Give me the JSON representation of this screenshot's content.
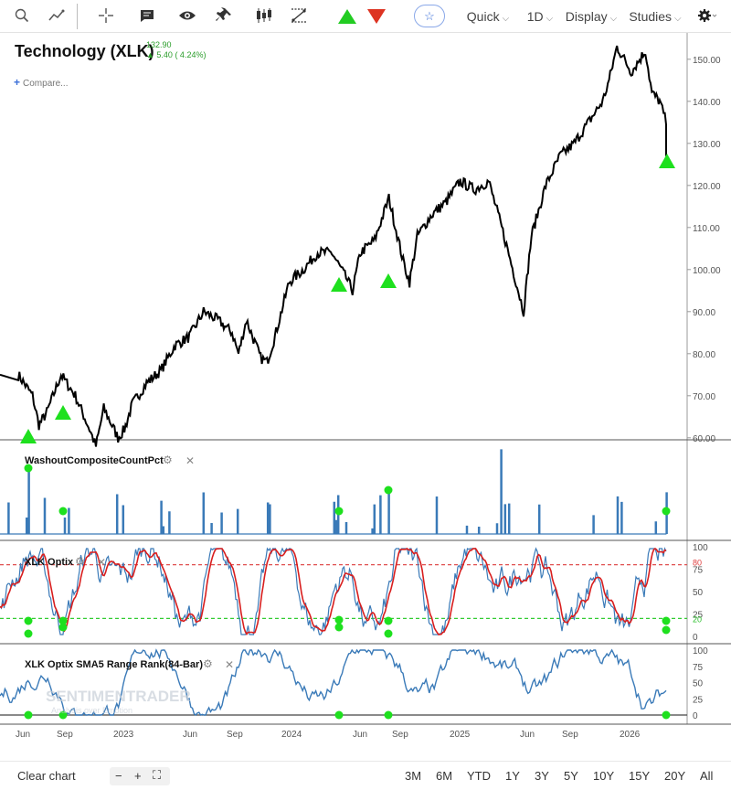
{
  "toolbar": {
    "tools": [
      {
        "name": "search-icon"
      },
      {
        "name": "trend-draw-icon"
      },
      {
        "name": "crosshair-icon"
      },
      {
        "name": "chat-icon"
      },
      {
        "name": "eye-icon"
      },
      {
        "name": "pin-icon"
      },
      {
        "name": "candles-icon"
      },
      {
        "name": "compare-lines-icon"
      },
      {
        "name": "up-triangle-icon"
      },
      {
        "name": "down-triangle-icon"
      }
    ],
    "fav_icon": "☆",
    "quick_label": "Quick",
    "period_label": "1D",
    "display_label": "Display",
    "studies_label": "Studies",
    "settings_icon": "gear-icon",
    "colors": {
      "up": "#22cc22",
      "down": "#dd3322"
    }
  },
  "legend": {
    "symbol_name": "Technology (XLK)",
    "price": "132.90",
    "change": "5.40 ( 4.24%)",
    "compare_label": "Compare..."
  },
  "panels": {
    "washout": {
      "label": "WashoutCompositeCountPct"
    },
    "optix": {
      "label": "XLK Optix",
      "level_labels": [
        "100",
        "80",
        "75",
        "50",
        "25",
        "20",
        "0"
      ]
    },
    "range_rank": {
      "label": "XLK Optix SMA5 Range Rank(84-Bar)",
      "level_labels": [
        "100",
        "75",
        "50",
        "25",
        "0"
      ]
    }
  },
  "watermark": {
    "line1": "SENTIMENTRADER",
    "line2": "Analysis over Emotion"
  },
  "footer": {
    "clear_label": "Clear chart",
    "zoom_out": "−",
    "zoom_in": "+",
    "fit_icon": "fit-icon",
    "ranges": [
      "3M",
      "6M",
      "YTD",
      "1Y",
      "3Y",
      "5Y",
      "10Y",
      "15Y",
      "20Y",
      "All"
    ]
  },
  "chart_data": {
    "type": "line",
    "x_tick_labels": [
      "Jun",
      "Sep",
      "2023",
      "Jun",
      "Sep",
      "2024",
      "Jun",
      "Sep",
      "2025",
      "Jun",
      "Sep",
      "2026"
    ],
    "price_axis": {
      "ticks": [
        "150.00",
        "140.00",
        "130.00",
        "120.00",
        "110.00",
        "100.00",
        "90.00",
        "80.00",
        "70.00",
        "60.00"
      ],
      "range": [
        56,
        154
      ]
    },
    "series": [
      {
        "name": "Technology (XLK)",
        "x": [
          "2022-05",
          "2022-06",
          "2022-06",
          "2022-07",
          "2022-08",
          "2022-09",
          "2022-10",
          "2022-10",
          "2022-11",
          "2022-12",
          "2022-12",
          "2023-01",
          "2023-02",
          "2023-03",
          "2023-04",
          "2023-05",
          "2023-06",
          "2023-07",
          "2023-08",
          "2023-08",
          "2023-09",
          "2023-10",
          "2023-10",
          "2023-11",
          "2023-12",
          "2024-01",
          "2024-02",
          "2024-03",
          "2024-04",
          "2024-04",
          "2024-05",
          "2024-06",
          "2024-07",
          "2024-08",
          "2024-08",
          "2024-09",
          "2024-10",
          "2024-11",
          "2024-12",
          "2025-01",
          "2025-02",
          "2025-03",
          "2025-04",
          "2025-04",
          "2025-05",
          "2025-06",
          "2025-07",
          "2025-08",
          "2025-09",
          "2025-10",
          "2025-10",
          "2025-11",
          "2025-12",
          "2026-01",
          "2026-01",
          "2026-02",
          "2026-02",
          "2026-03"
        ],
        "values": [
          75,
          70,
          63,
          66,
          75,
          70,
          62,
          58,
          67,
          60,
          62,
          68,
          73,
          76,
          82,
          84,
          90,
          88,
          85,
          80,
          88,
          79,
          78,
          84,
          97,
          100,
          104,
          104,
          98,
          95,
          104,
          107,
          117,
          102,
          97,
          108,
          113,
          116,
          121,
          119,
          121,
          109,
          96,
          90,
          108,
          120,
          127,
          130,
          135,
          140,
          145,
          153,
          147,
          152,
          142,
          140,
          135,
          127
        ]
      },
      {
        "name": "WashoutCompositeCountPct",
        "baseline": 0,
        "max_spike": 100
      },
      {
        "name": "XLK Optix",
        "range": [
          0,
          100
        ],
        "reference_levels": [
          80,
          20
        ]
      },
      {
        "name": "XLK Optix SMA5 Range Rank(84-Bar)",
        "range": [
          0,
          100
        ]
      }
    ],
    "signals": {
      "up_markers_price": [
        "2022-06",
        "2022-09",
        "2024-04",
        "2024-08",
        "2026-03"
      ],
      "washout_dots": [
        "2022-06",
        "2022-09",
        "2024-04",
        "2024-08",
        "2026-03"
      ]
    },
    "grid": false,
    "legend_position": "top-left"
  }
}
